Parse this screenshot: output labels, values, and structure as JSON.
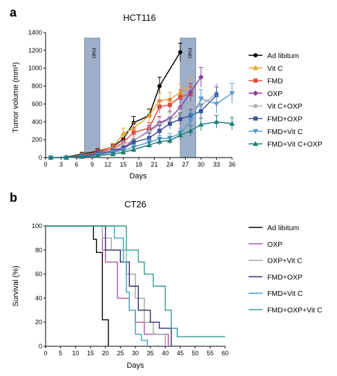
{
  "figure": {
    "panels": [
      {
        "letter": "a",
        "title": "HCT116",
        "chart_type": "line",
        "xlabel": "Days",
        "ylabel": "Tumor volume (mm³)",
        "x_ticks": [
          "0",
          "3",
          "6",
          "9",
          "12",
          "15",
          "18",
          "21",
          "24",
          "27",
          "30",
          "33",
          "36"
        ],
        "y_ticks": [
          "0",
          "200",
          "400",
          "600",
          "800",
          "1000",
          "1200",
          "1400"
        ],
        "band_label": "FMD"
      },
      {
        "letter": "b",
        "title": "CT26",
        "chart_type": "line",
        "xlabel": "Days",
        "ylabel": "Survival (%)",
        "x_ticks": [
          "0",
          "5",
          "10",
          "15",
          "20",
          "25",
          "30",
          "35",
          "40",
          "45",
          "50",
          "55",
          "60"
        ],
        "y_ticks": [
          "0",
          "20",
          "40",
          "60",
          "80",
          "100"
        ]
      }
    ]
  },
  "chart_data": [
    {
      "type": "line",
      "title": "HCT116",
      "xlabel": "Days",
      "ylabel": "Tumor volume (mm³)",
      "xlim": [
        0,
        36
      ],
      "ylim": [
        0,
        1400
      ],
      "x_ticks": [
        0,
        3,
        6,
        9,
        12,
        15,
        18,
        21,
        24,
        27,
        30,
        33,
        36
      ],
      "y_ticks": [
        0,
        200,
        400,
        600,
        800,
        1000,
        1200,
        1400
      ],
      "shaded_regions": [
        {
          "label": "FMD",
          "x_start": 7.5,
          "x_end": 10.5,
          "color": "#8ea3c0"
        },
        {
          "label": "FMD",
          "x_start": 26,
          "x_end": 29,
          "color": "#8ea3c0"
        }
      ],
      "legend_position": "right",
      "series": [
        {
          "name": "Ad libitum",
          "color": "#000000",
          "marker": "circle",
          "x": [
            1,
            4,
            7,
            10,
            13,
            15,
            17,
            20,
            22,
            26
          ],
          "y": [
            0,
            5,
            40,
            70,
            120,
            210,
            390,
            470,
            800,
            1180
          ],
          "err": [
            10,
            10,
            20,
            30,
            30,
            50,
            70,
            70,
            100,
            100
          ]
        },
        {
          "name": "Vit C",
          "color": "#f0a030",
          "marker": "tri-up",
          "x": [
            1,
            4,
            7,
            10,
            13,
            15,
            17,
            20,
            22,
            24,
            26,
            28
          ],
          "y": [
            0,
            0,
            30,
            60,
            120,
            270,
            330,
            470,
            640,
            650,
            730,
            800
          ],
          "err": [
            10,
            10,
            20,
            30,
            40,
            60,
            60,
            80,
            80,
            80,
            90,
            90
          ]
        },
        {
          "name": "FMD",
          "color": "#e04a3a",
          "marker": "square",
          "x": [
            1,
            4,
            7,
            10,
            13,
            15,
            17,
            20,
            22,
            24,
            26,
            28
          ],
          "y": [
            0,
            0,
            20,
            60,
            100,
            170,
            280,
            330,
            570,
            590,
            680,
            710
          ],
          "err": [
            10,
            10,
            20,
            30,
            40,
            50,
            60,
            60,
            70,
            70,
            80,
            80
          ]
        },
        {
          "name": "OXP",
          "color": "#8a3fa0",
          "marker": "diamond",
          "x": [
            1,
            4,
            7,
            10,
            13,
            15,
            17,
            20,
            22,
            24,
            26,
            28,
            30
          ],
          "y": [
            0,
            0,
            20,
            50,
            80,
            110,
            190,
            300,
            390,
            440,
            560,
            730,
            900
          ],
          "err": [
            10,
            10,
            15,
            25,
            30,
            40,
            50,
            60,
            70,
            80,
            90,
            100,
            110
          ]
        },
        {
          "name": "Vit C+OXP",
          "color": "#b0b0b0",
          "marker": "circle",
          "x": [
            1,
            4,
            7,
            10,
            13,
            15,
            17,
            20,
            22,
            24,
            26,
            28,
            30,
            33
          ],
          "y": [
            0,
            0,
            20,
            40,
            80,
            150,
            190,
            290,
            370,
            430,
            480,
            530,
            580,
            720
          ],
          "err": [
            10,
            10,
            15,
            20,
            30,
            40,
            50,
            60,
            70,
            70,
            80,
            80,
            90,
            100
          ]
        },
        {
          "name": "FMD+OXP",
          "color": "#3a4fa0",
          "marker": "square",
          "x": [
            1,
            4,
            7,
            10,
            13,
            15,
            17,
            20,
            22,
            24,
            26,
            28,
            30,
            33
          ],
          "y": [
            0,
            0,
            20,
            40,
            70,
            100,
            170,
            220,
            300,
            380,
            430,
            470,
            520,
            700
          ],
          "err": [
            10,
            10,
            15,
            20,
            25,
            30,
            40,
            50,
            60,
            60,
            70,
            70,
            80,
            90
          ]
        },
        {
          "name": "FMD+Vit C",
          "color": "#5a9ad0",
          "marker": "tri-down",
          "x": [
            1,
            4,
            7,
            10,
            13,
            15,
            17,
            20,
            22,
            24,
            26,
            28,
            30,
            33,
            36
          ],
          "y": [
            0,
            0,
            10,
            30,
            60,
            80,
            120,
            170,
            210,
            220,
            270,
            410,
            660,
            600,
            720
          ],
          "err": [
            10,
            10,
            10,
            15,
            20,
            25,
            30,
            40,
            40,
            50,
            60,
            70,
            100,
            100,
            110
          ]
        },
        {
          "name": "FMD+Vit C+OXP",
          "color": "#1f7f78",
          "marker": "tri-up",
          "x": [
            1,
            4,
            7,
            10,
            13,
            15,
            17,
            20,
            22,
            24,
            26,
            28,
            30,
            33,
            36
          ],
          "y": [
            0,
            0,
            10,
            20,
            40,
            60,
            90,
            140,
            180,
            190,
            250,
            300,
            370,
            400,
            380
          ],
          "err": [
            10,
            10,
            10,
            15,
            20,
            25,
            30,
            30,
            40,
            40,
            50,
            60,
            70,
            70,
            70
          ]
        }
      ]
    },
    {
      "type": "line",
      "title": "CT26",
      "xlabel": "Days",
      "ylabel": "Survival (%)",
      "xlim": [
        0,
        60
      ],
      "ylim": [
        0,
        100
      ],
      "x_ticks": [
        0,
        5,
        10,
        15,
        20,
        25,
        30,
        35,
        40,
        45,
        50,
        55,
        60
      ],
      "y_ticks": [
        0,
        20,
        40,
        60,
        80,
        100
      ],
      "step": true,
      "legend_position": "right",
      "series": [
        {
          "name": "Ad libitum",
          "color": "#000000",
          "x": [
            0,
            16,
            16,
            17,
            17,
            19,
            19,
            21,
            21
          ],
          "y": [
            100,
            100,
            89,
            89,
            78,
            78,
            22,
            22,
            0
          ]
        },
        {
          "name": "OXP",
          "color": "#b050a0",
          "x": [
            0,
            19,
            19,
            20,
            20,
            24,
            24,
            28,
            28,
            30,
            30,
            33,
            33,
            41,
            41
          ],
          "y": [
            100,
            100,
            80,
            80,
            70,
            70,
            40,
            40,
            30,
            30,
            20,
            20,
            10,
            10,
            0
          ]
        },
        {
          "name": "OXP+Vit C",
          "color": "#a0a0a0",
          "x": [
            0,
            19,
            19,
            22,
            22,
            27,
            27,
            30,
            30,
            33,
            33,
            36,
            36,
            40,
            40
          ],
          "y": [
            100,
            100,
            90,
            90,
            80,
            80,
            60,
            60,
            40,
            40,
            20,
            20,
            10,
            10,
            0
          ]
        },
        {
          "name": "FMD+OXP",
          "color": "#2a2a6a",
          "x": [
            0,
            20,
            20,
            25,
            25,
            28,
            28,
            31,
            31,
            35,
            35,
            38,
            38,
            42,
            42
          ],
          "y": [
            100,
            100,
            80,
            80,
            70,
            70,
            50,
            50,
            30,
            30,
            20,
            20,
            15,
            15,
            0
          ]
        },
        {
          "name": "FMD+Vit C",
          "color": "#3aa0c0",
          "x": [
            0,
            23,
            23,
            26,
            26,
            27,
            27,
            28,
            28,
            30,
            30,
            32,
            32,
            34,
            34
          ],
          "y": [
            100,
            100,
            90,
            90,
            70,
            70,
            45,
            45,
            30,
            30,
            10,
            10,
            5,
            5,
            0
          ]
        },
        {
          "name": "FMD+OXP+Vit C",
          "color": "#2a9a90",
          "x": [
            0,
            27,
            27,
            31,
            31,
            33,
            33,
            36,
            36,
            40,
            40,
            42,
            42,
            44,
            44,
            60
          ],
          "y": [
            100,
            100,
            80,
            80,
            70,
            70,
            60,
            60,
            50,
            50,
            30,
            30,
            15,
            15,
            8,
            8
          ]
        }
      ]
    }
  ]
}
